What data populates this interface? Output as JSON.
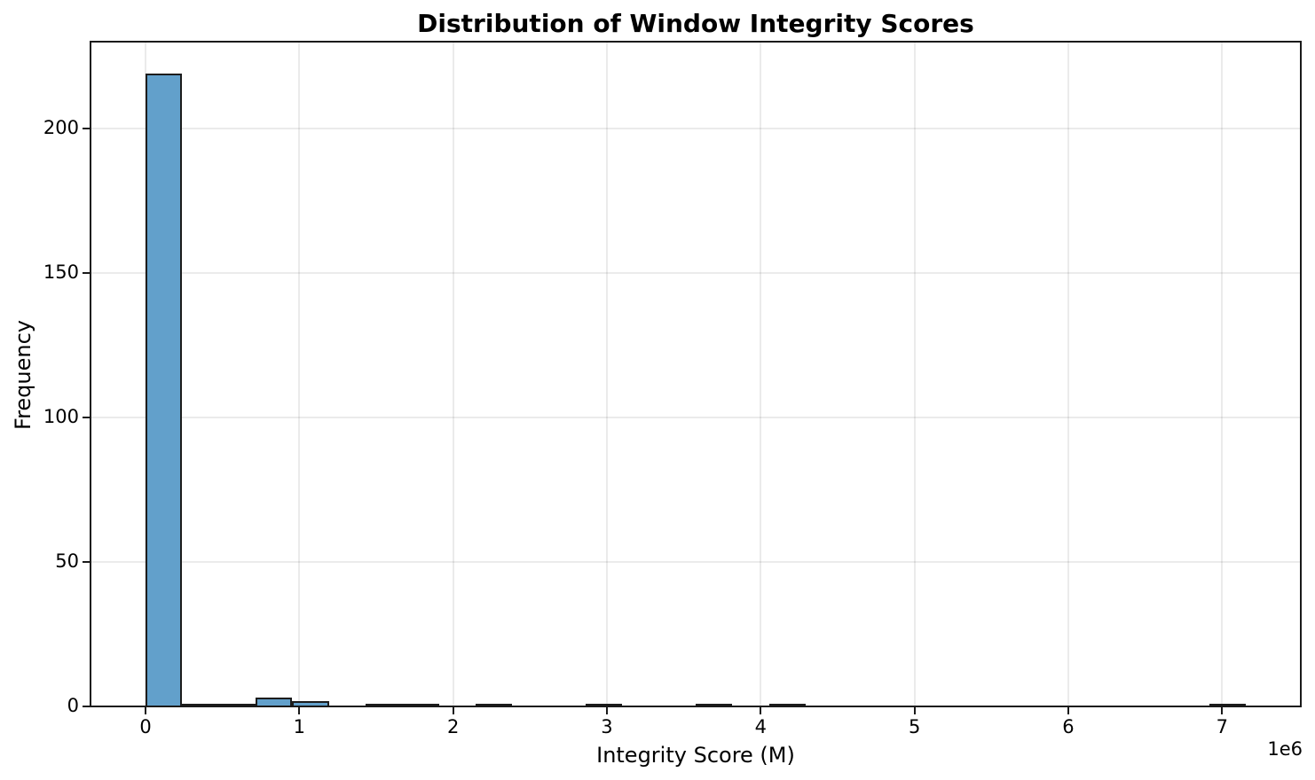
{
  "chart_data": {
    "type": "histogram",
    "title": "Distribution of Window Integrity Scores",
    "xlabel": "Integrity Score (M)",
    "ylabel": "Frequency",
    "x_offset_text": "1e6",
    "x_unit_multiplier": 1000000,
    "bins": 30,
    "bin_range": [
      0,
      7.155
    ],
    "bin_width": 0.2385,
    "counts": [
      219,
      1,
      1,
      3,
      2,
      0,
      1,
      1,
      0,
      1,
      0,
      0,
      1,
      0,
      0,
      1,
      0,
      1,
      0,
      0,
      0,
      0,
      0,
      0,
      0,
      0,
      0,
      0,
      0,
      1
    ],
    "xticks": [
      0,
      1,
      2,
      3,
      4,
      5,
      6,
      7
    ],
    "yticks": [
      0,
      50,
      100,
      150,
      200
    ],
    "xlim": [
      -0.358,
      7.512
    ],
    "ylim": [
      0,
      229.95
    ],
    "grid": true,
    "legend": null,
    "colors": {
      "bar_fill": "#62a0cb",
      "bar_edge": "#1c1c1c",
      "grid": "#ebebeb",
      "spine": "#1a1a1a",
      "text": "#000000",
      "background": "#ffffff"
    }
  }
}
